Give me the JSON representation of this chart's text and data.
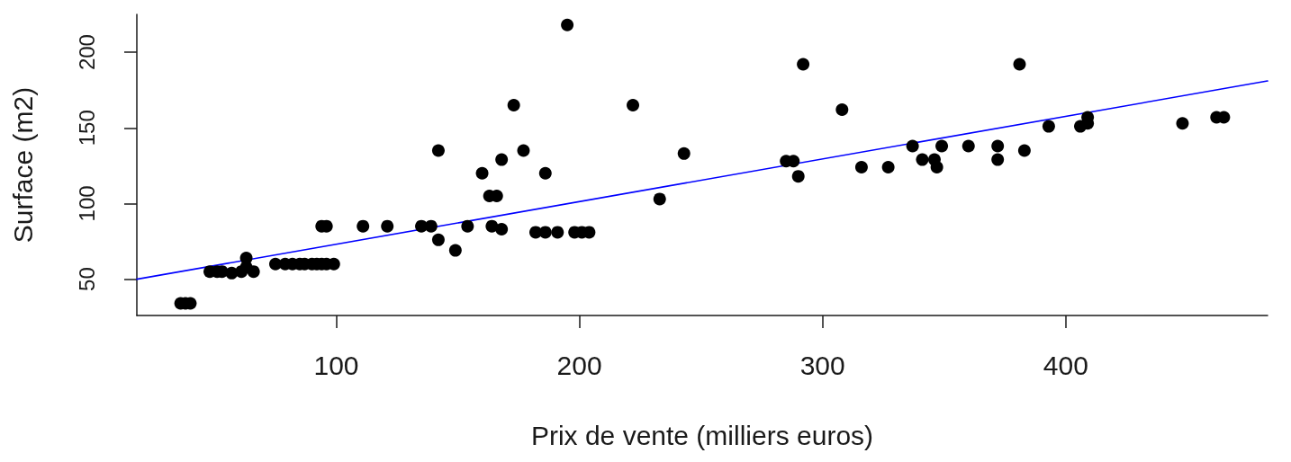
{
  "chart_data": {
    "type": "scatter",
    "xlabel": "Prix de vente (milliers euros)",
    "ylabel": "Surface (m2)",
    "xlim": [
      18,
      483
    ],
    "ylim": [
      26,
      225
    ],
    "xticks": [
      100,
      200,
      300,
      400
    ],
    "yticks": [
      50,
      100,
      150,
      200
    ],
    "marker": "circle",
    "series": [
      {
        "color": "#000000",
        "x": [
          36,
          38,
          40,
          48,
          51,
          53,
          57,
          61,
          63,
          63,
          66,
          75,
          79,
          82,
          85,
          87,
          90,
          92,
          94,
          96,
          99,
          94,
          96,
          111,
          121,
          135,
          139,
          154,
          164,
          168,
          142,
          142,
          149,
          160,
          163,
          166,
          168,
          173,
          177,
          182,
          186,
          191,
          186,
          195,
          198,
          201,
          204,
          222,
          233,
          243,
          285,
          288,
          290,
          292,
          308,
          316,
          327,
          337,
          341,
          346,
          347,
          349,
          360,
          372,
          372,
          381,
          383,
          393,
          406,
          409,
          409,
          448,
          462,
          465
        ],
        "values": [
          34,
          34,
          34,
          55,
          55,
          55,
          54,
          55,
          58,
          64,
          55,
          60,
          60,
          60,
          60,
          60,
          60,
          60,
          60,
          60,
          60,
          85,
          85,
          85,
          85,
          85,
          85,
          85,
          85,
          83,
          76,
          135,
          69,
          120,
          105,
          105,
          129,
          165,
          135,
          81,
          81,
          81,
          120,
          218,
          81,
          81,
          81,
          165,
          103,
          133,
          128,
          128,
          118,
          192,
          162,
          124,
          124,
          138,
          129,
          129,
          124,
          138,
          138,
          138,
          129,
          192,
          135,
          151,
          151,
          153,
          157,
          153,
          157,
          157
        ]
      },
      {
        "type": "line",
        "color": "#0000ff",
        "x": [
          18,
          483
        ],
        "values": [
          50,
          181
        ],
        "marker": "none",
        "line_style": "solid"
      }
    ]
  }
}
